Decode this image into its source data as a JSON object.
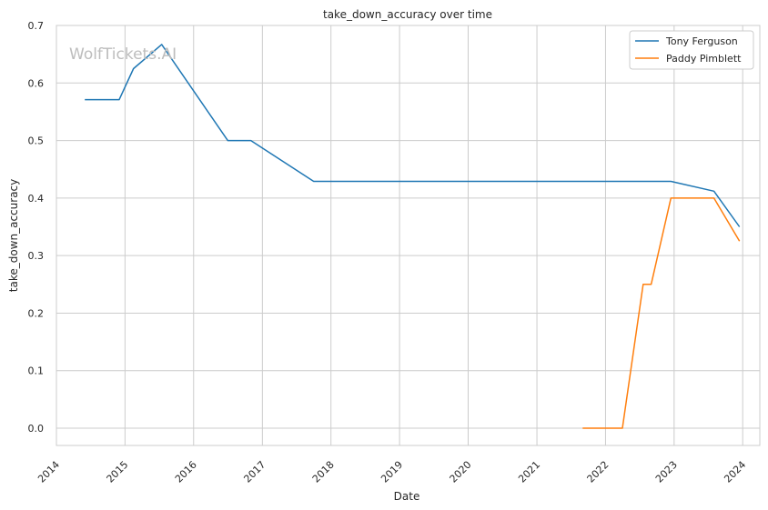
{
  "watermark": "WolfTickets.AI",
  "chart_data": {
    "type": "line",
    "title": "take_down_accuracy over time",
    "xlabel": "Date",
    "ylabel": "take_down_accuracy",
    "xlim": [
      "2014-01-01",
      "2024-04-01"
    ],
    "ylim": [
      -0.03,
      0.7
    ],
    "x_ticks": [
      "2014",
      "2015",
      "2016",
      "2017",
      "2018",
      "2019",
      "2020",
      "2021",
      "2022",
      "2023",
      "2024"
    ],
    "y_ticks": [
      "0.0",
      "0.1",
      "0.2",
      "0.3",
      "0.4",
      "0.5",
      "0.6",
      "0.7"
    ],
    "grid": true,
    "legend_position": "top-right",
    "series": [
      {
        "name": "Tony Ferguson",
        "color": "#1f77b4",
        "points": [
          [
            "2014-06-01",
            0.571
          ],
          [
            "2014-12-01",
            0.571
          ],
          [
            "2015-02-15",
            0.625
          ],
          [
            "2015-07-15",
            0.667
          ],
          [
            "2016-07-01",
            0.5
          ],
          [
            "2016-11-01",
            0.5
          ],
          [
            "2017-10-01",
            0.429
          ],
          [
            "2022-12-15",
            0.429
          ],
          [
            "2023-08-01",
            0.412
          ],
          [
            "2023-12-15",
            0.35
          ]
        ]
      },
      {
        "name": "Paddy Pimblett",
        "color": "#ff7f0e",
        "points": [
          [
            "2021-09-01",
            0.0
          ],
          [
            "2022-04-01",
            0.0
          ],
          [
            "2022-07-20",
            0.25
          ],
          [
            "2022-09-01",
            0.25
          ],
          [
            "2022-12-15",
            0.4
          ],
          [
            "2023-08-01",
            0.4
          ],
          [
            "2023-12-15",
            0.325
          ]
        ]
      }
    ]
  }
}
